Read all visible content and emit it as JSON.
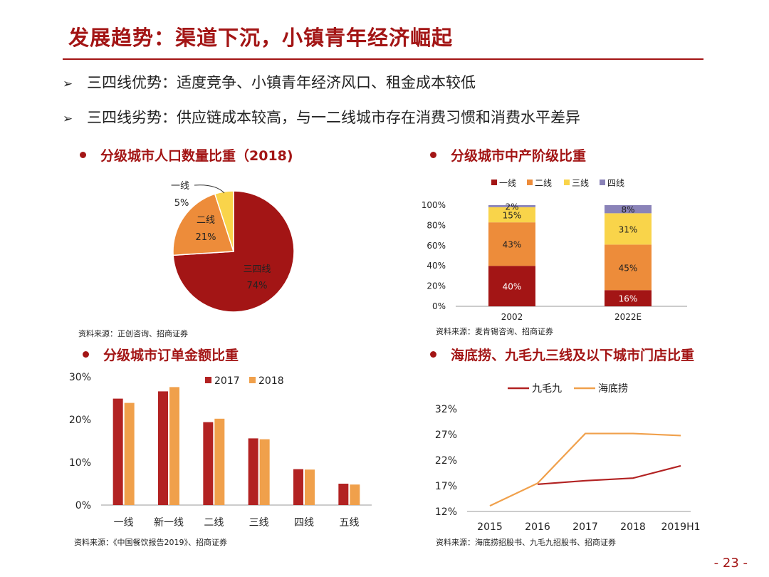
{
  "title": "发展趋势：渠道下沉，小镇青年经济崛起",
  "bullets": [
    "三四线优势：适度竞争、小镇青年经济风口、租金成本较低",
    "三四线劣势：供应链成本较高，与一二线城市存在消费习惯和消费水平差异"
  ],
  "page_number": "- 23 -",
  "colors": {
    "dark_red": "#a31515",
    "orange": "#ed8c3a",
    "yellow": "#f9d44a",
    "purple": "#8a83b8",
    "line_red": "#b22222",
    "line_orange": "#f0a04b"
  },
  "panels": {
    "pie": {
      "heading": "分级城市人口数量比重（2018)",
      "source": "资料来源：正创咨询、招商证券"
    },
    "stack": {
      "heading": "分级城市中产阶级比重",
      "source": "资料来源：麦肯锡咨询、招商证券"
    },
    "bars": {
      "heading": "分级城市订单金额比重",
      "source": "资料来源：《中国餐饮报告2019》、招商证券"
    },
    "lines": {
      "heading": "海底捞、九毛九三线及以下城市门店比重",
      "source": "资料来源：海底捞招股书、九毛九招股书、招商证券"
    }
  },
  "chart_data": [
    {
      "type": "pie",
      "title": "分级城市人口数量比重（2018)",
      "slices": [
        {
          "label": "三四线",
          "value": 74,
          "value_label": "74%"
        },
        {
          "label": "二线",
          "value": 21,
          "value_label": "21%"
        },
        {
          "label": "一线",
          "value": 5,
          "value_label": "5%"
        }
      ]
    },
    {
      "type": "bar",
      "stacked": true,
      "title": "分级城市中产阶级比重",
      "categories": [
        "2002",
        "2022E"
      ],
      "series": [
        {
          "name": "一线",
          "values": [
            40,
            16
          ],
          "labels": [
            "40%",
            "16%"
          ]
        },
        {
          "name": "二线",
          "values": [
            43,
            45
          ],
          "labels": [
            "43%",
            "45%"
          ]
        },
        {
          "name": "三线",
          "values": [
            15,
            31
          ],
          "labels": [
            "15%",
            "31%"
          ]
        },
        {
          "name": "四线",
          "values": [
            2,
            8
          ],
          "labels": [
            "2%",
            "8%"
          ]
        }
      ],
      "ylim": [
        0,
        100
      ],
      "yticks": [
        "0%",
        "20%",
        "40%",
        "60%",
        "80%",
        "100%"
      ],
      "legend_position": "top"
    },
    {
      "type": "bar",
      "title": "分级城市订单金额比重",
      "categories": [
        "一线",
        "新一线",
        "二线",
        "三线",
        "四线",
        "五线"
      ],
      "series": [
        {
          "name": "2017",
          "values": [
            24.9,
            26.6,
            19.4,
            15.6,
            8.4,
            5.0
          ]
        },
        {
          "name": "2018",
          "values": [
            23.9,
            27.6,
            20.2,
            15.4,
            8.3,
            4.8
          ]
        }
      ],
      "ylim": [
        0,
        30
      ],
      "yticks": [
        "0%",
        "10%",
        "20%",
        "30%"
      ],
      "legend_position": "top-right"
    },
    {
      "type": "line",
      "title": "海底捞、九毛九三线及以下城市门店比重",
      "x": [
        "2015",
        "2016",
        "2017",
        "2018",
        "2019H1"
      ],
      "series": [
        {
          "name": "九毛九",
          "values": [
            null,
            17.3,
            18.0,
            18.5,
            20.9
          ]
        },
        {
          "name": "海底捞",
          "values": [
            13.1,
            17.5,
            27.2,
            27.2,
            26.8
          ]
        }
      ],
      "ylim": [
        12,
        32
      ],
      "yticks": [
        "12%",
        "17%",
        "22%",
        "27%",
        "32%"
      ],
      "legend_position": "top"
    }
  ]
}
